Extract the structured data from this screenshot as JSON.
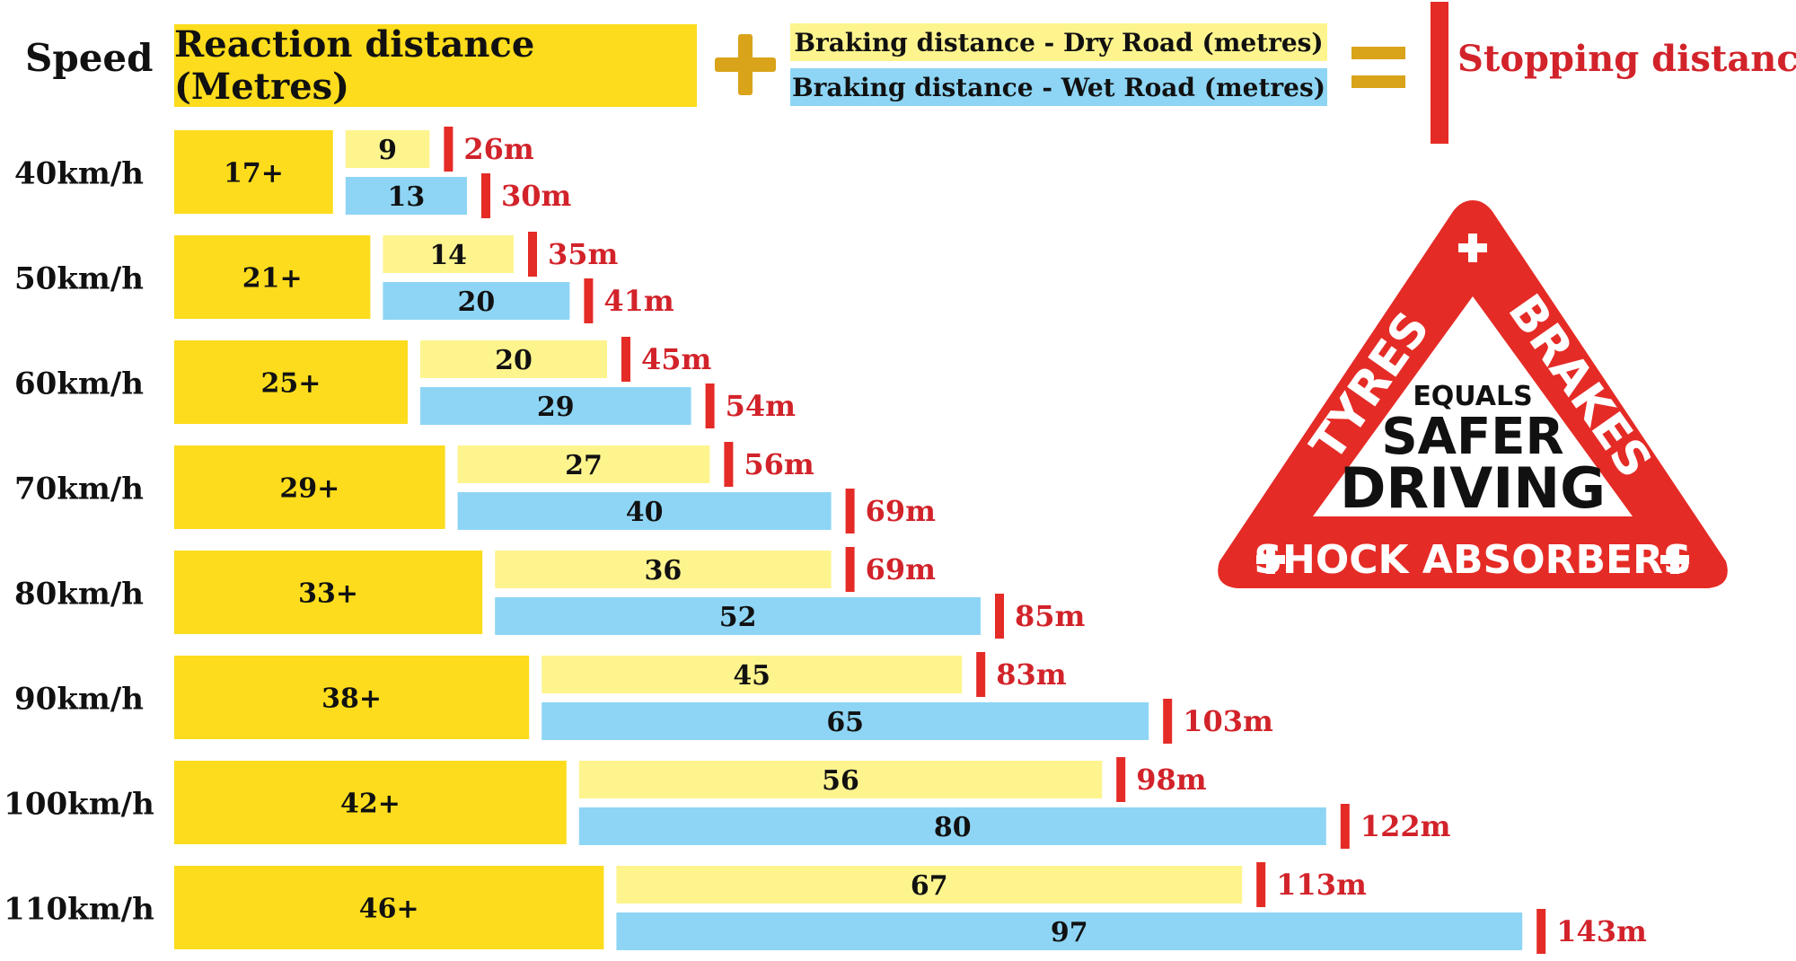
{
  "header": {
    "speed_label": "Speed",
    "reaction_label": "Reaction distance (Metres)",
    "dry_label": "Braking distance - Dry Road (metres)",
    "wet_label": "Braking distance - Wet Road (metres)",
    "stopping_label": "Stopping distance"
  },
  "colors": {
    "reaction": "#fcdc1c",
    "dry": "#fdf48e",
    "wet": "#8ed5f5",
    "stop_marker": "#e52b26",
    "stop_text": "#d2232a",
    "operator": "#d9a31a"
  },
  "badge": {
    "left_word": "TYRES",
    "right_word": "BRAKES",
    "line1": "EQUALS",
    "line2": "SAFER",
    "line3": "DRIVING",
    "bottom_word": "SHOCK ABSORBERS"
  },
  "chart_data": {
    "type": "bar",
    "categories": [
      "40km/h",
      "50km/h",
      "60km/h",
      "70km/h",
      "80km/h",
      "90km/h",
      "100km/h",
      "110km/h"
    ],
    "reaction": [
      17,
      21,
      25,
      29,
      33,
      38,
      42,
      46
    ],
    "reaction_labels": [
      "17+",
      "21+",
      "25+",
      "29+",
      "33+",
      "38+",
      "42+",
      "46+"
    ],
    "dry": [
      9,
      14,
      20,
      27,
      36,
      45,
      56,
      67
    ],
    "wet": [
      13,
      20,
      29,
      40,
      52,
      65,
      80,
      97
    ],
    "dry_stop_labels": [
      "26m",
      "35m",
      "45m",
      "56m",
      "69m",
      "83m",
      "98m",
      "113m"
    ],
    "wet_stop_labels": [
      "30m",
      "41m",
      "54m",
      "69m",
      "85m",
      "103m",
      "122m",
      "143m"
    ]
  }
}
